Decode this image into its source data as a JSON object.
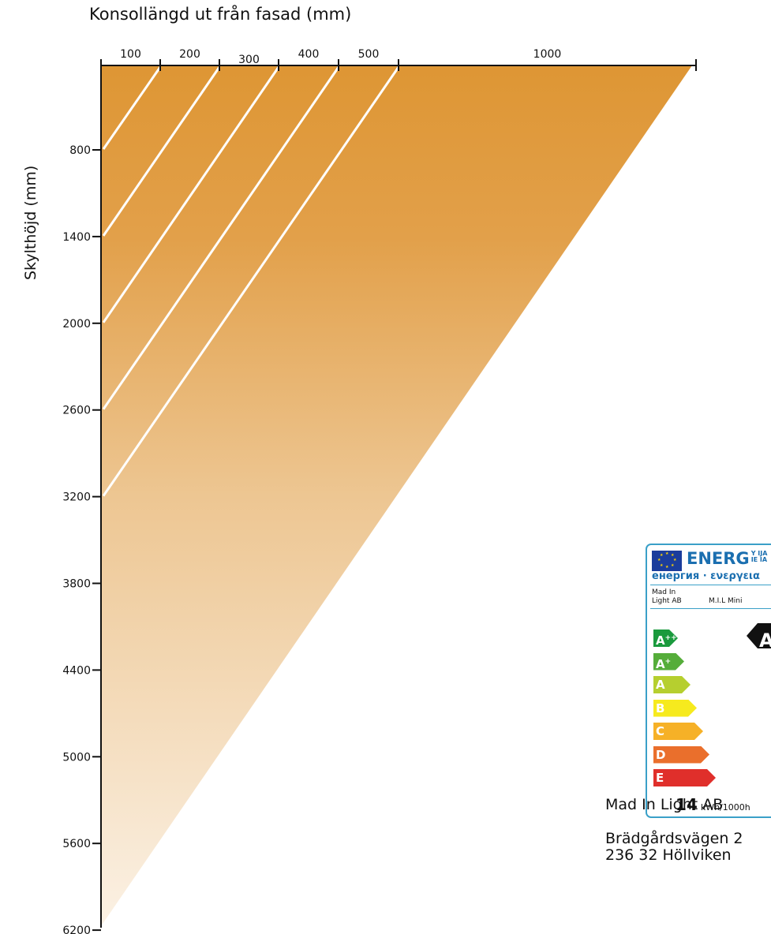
{
  "title": "Konsollängd ut från fasad (mm)",
  "y_axis_label": "Skylthöjd (mm)",
  "chart_data": {
    "type": "diagram",
    "top_axis_labels": [
      "100",
      "200",
      "300",
      "400",
      "500",
      "1000"
    ],
    "left_axis_labels": [
      "800",
      "1400",
      "2000",
      "2600",
      "3200",
      "3800",
      "4400",
      "5000",
      "5600",
      "6200"
    ],
    "diagonal_lines": [
      {
        "console": "100",
        "sign_height": "800"
      },
      {
        "console": "200",
        "sign_height": "1400"
      },
      {
        "console": "300",
        "sign_height": "2000"
      },
      {
        "console": "400",
        "sign_height": "2600"
      },
      {
        "console": "500",
        "sign_height": "3200"
      }
    ],
    "gradient_colors": [
      "#de9634",
      "#fbf1e4"
    ],
    "line_color": "#ffffff"
  },
  "energy_label": {
    "energ": "ENERG",
    "energ_suffix_top": "Y IJA",
    "energ_suffix_bottom": "IE IA",
    "energ_sub": "енергия · ενεργεια",
    "supplier": "Mad In\nLight AB",
    "model": "M.I.L Mini",
    "rating": "A",
    "rating_sup": "++",
    "classes": [
      {
        "letter": "A",
        "sup": "++",
        "color": "#1a9a3d"
      },
      {
        "letter": "A",
        "sup": "+",
        "color": "#55ad3a"
      },
      {
        "letter": "A",
        "sup": "",
        "color": "#b6cf2f"
      },
      {
        "letter": "B",
        "sup": "",
        "color": "#f6ea1e"
      },
      {
        "letter": "C",
        "sup": "",
        "color": "#f6b127"
      },
      {
        "letter": "D",
        "sup": "",
        "color": "#ea6f2c"
      },
      {
        "letter": "E",
        "sup": "",
        "color": "#e02f2b"
      }
    ],
    "consumption_value": "14",
    "consumption_unit": "kWh/1000h"
  },
  "company": {
    "name": "Mad In Light AB",
    "address_line1": "Brädgårdsvägen 2",
    "address_line2": "236 32 Höllviken"
  }
}
